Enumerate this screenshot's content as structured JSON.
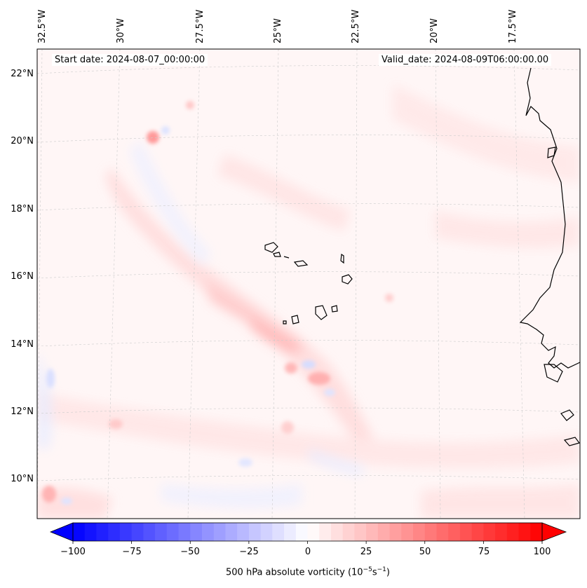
{
  "header": {
    "start_date": "Start date: 2024-08-07_00:00:00",
    "valid_date": "Valid_date: 2024-08-09T06:00:00.00"
  },
  "map": {
    "longitude_labels": [
      "32.5°W",
      "30°W",
      "27.5°W",
      "25°W",
      "22.5°W",
      "20°W",
      "17.5°W"
    ],
    "latitude_labels": [
      "22°N",
      "20°N",
      "18°N",
      "16°N",
      "14°N",
      "12°N",
      "10°N"
    ],
    "field": "500 hPa absolute vorticity"
  },
  "colorbar": {
    "tick_labels": [
      "−100",
      "−75",
      "−50",
      "−25",
      "0",
      "25",
      "50",
      "75",
      "100"
    ],
    "label_text": "500 hPa absolute vorticity (10",
    "label_exp1": "−5",
    "label_mid": "s",
    "label_exp2": "−1",
    "label_close": ")",
    "min": -100,
    "max": 100,
    "low_color": "#0000ff",
    "mid_color": "#ffffff",
    "high_color": "#ff0000"
  }
}
